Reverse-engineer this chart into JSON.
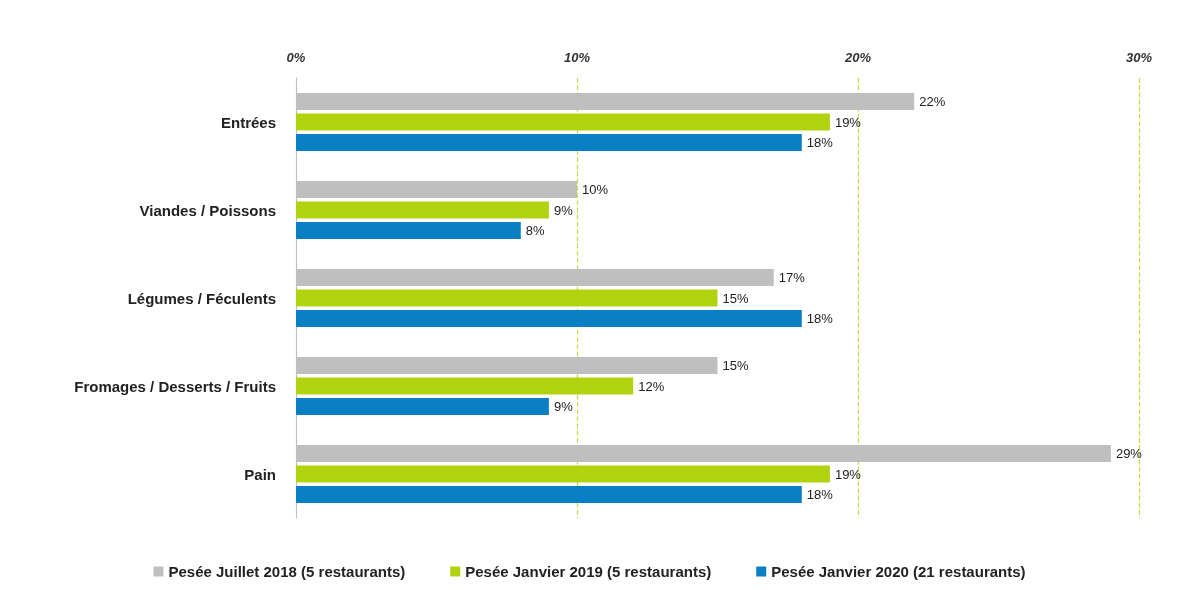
{
  "chart_data": {
    "type": "bar",
    "orientation": "horizontal",
    "categories": [
      "Entrées",
      "Viandes / Poissons",
      "Légumes / Féculents",
      "Fromages / Desserts / Fruits",
      "Pain"
    ],
    "series": [
      {
        "name": "Pesée Juillet 2018 (5 restaurants)",
        "color": "#bfbfbf",
        "values": [
          22,
          10,
          17,
          15,
          29
        ],
        "value_labels": [
          "22%",
          "10%",
          "17%",
          "15%",
          "29%"
        ]
      },
      {
        "name": "Pesée Janvier 2019 (5 restaurants)",
        "color": "#b1d20f",
        "values": [
          19,
          9,
          15,
          12,
          19
        ],
        "value_labels": [
          "19%",
          "9%",
          "15%",
          "12%",
          "19%"
        ]
      },
      {
        "name": "Pesée Janvier 2020 (21 restaurants)",
        "color": "#0a7fc4",
        "values": [
          18,
          8,
          18,
          9,
          18
        ],
        "value_labels": [
          "18%",
          "8%",
          "18%",
          "9%",
          "18%"
        ]
      }
    ],
    "xlim": [
      0,
      30
    ],
    "xticks": [
      {
        "value": 0,
        "label": "0%"
      },
      {
        "value": 10,
        "label": "10%"
      },
      {
        "value": 20,
        "label": "20%"
      },
      {
        "value": 30,
        "label": "30%"
      }
    ],
    "grid": "x",
    "legend": "bottom"
  }
}
